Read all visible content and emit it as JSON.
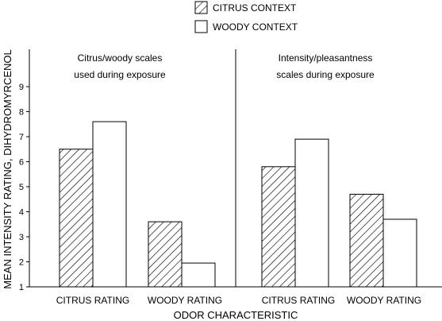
{
  "chart_data": {
    "type": "bar",
    "ylabel": "MEAN INTENSITY RATING, DIHYDROMYRCENOL",
    "xlabel": "ODOR CHARACTERISTIC",
    "ylim": [
      1,
      10
    ],
    "yticks": [
      1,
      2,
      3,
      4,
      5,
      6,
      7,
      8,
      9
    ],
    "legend_position": "top-center",
    "series": [
      {
        "name": "CITRUS CONTEXT",
        "pattern": "hatched",
        "color": "#000000"
      },
      {
        "name": "WOODY CONTEXT",
        "pattern": "solid",
        "color": "#ffffff"
      }
    ],
    "panels": [
      {
        "annotation": [
          "Citrus/woody scales",
          "used during exposure"
        ],
        "categories": [
          "CITRUS RATING",
          "WOODY RATING"
        ],
        "values": [
          [
            6.5,
            7.6
          ],
          [
            3.6,
            1.95
          ]
        ]
      },
      {
        "annotation": [
          "Intensity/pleasantness",
          "scales during exposure"
        ],
        "categories": [
          "CITRUS RATING",
          "WOODY RATING"
        ],
        "values": [
          [
            5.8,
            6.9
          ],
          [
            4.7,
            3.7
          ]
        ]
      }
    ]
  }
}
